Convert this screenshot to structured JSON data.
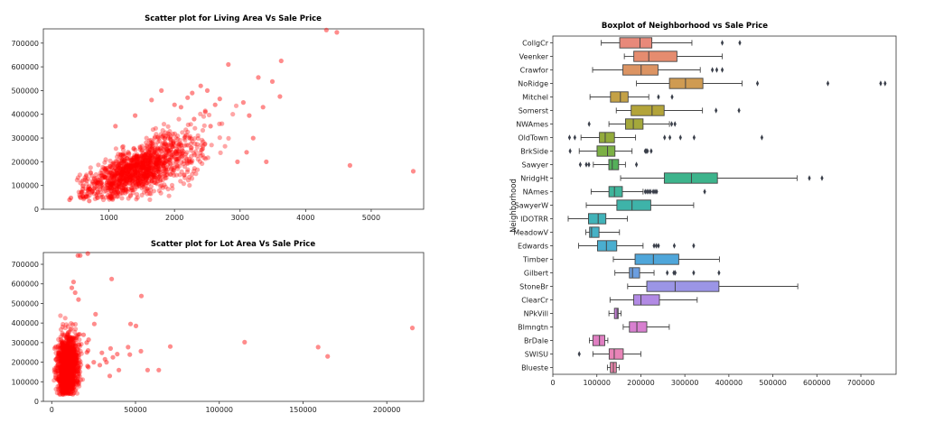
{
  "chart_data": [
    {
      "type": "scatter",
      "title": "Scatter plot for Living Area Vs Sale Price",
      "xlabel": "",
      "ylabel": "",
      "xlim": [
        0,
        5800
      ],
      "ylim": [
        0,
        760000
      ],
      "xticks": [
        1000,
        2000,
        3000,
        4000,
        5000
      ],
      "yticks": [
        0,
        100000,
        200000,
        300000,
        400000,
        500000,
        600000,
        700000
      ],
      "point_color": "#ff0000",
      "grid": false,
      "cloud": {
        "x_center": 1500,
        "x_spread": 420,
        "slope": 105,
        "intercept": 15000,
        "noise": 42000,
        "n": 1300
      },
      "points": [
        [
          4316,
          755000
        ],
        [
          4476,
          745000
        ],
        [
          4676,
          184750
        ],
        [
          5642,
          160000
        ],
        [
          3627,
          625000
        ],
        [
          2822,
          610000
        ],
        [
          3608,
          475000
        ],
        [
          3493,
          538000
        ],
        [
          3279,
          555000
        ],
        [
          2620,
          440000
        ],
        [
          3140,
          395000
        ],
        [
          2690,
          465000
        ],
        [
          3200,
          300000
        ],
        [
          3050,
          450000
        ],
        [
          2400,
          520000
        ],
        [
          2500,
          500000
        ],
        [
          2270,
          490000
        ],
        [
          1800,
          500000
        ],
        [
          3100,
          240000
        ],
        [
          2960,
          200000
        ],
        [
          3400,
          200000
        ],
        [
          2470,
          410000
        ],
        [
          2100,
          430000
        ],
        [
          2200,
          470000
        ],
        [
          400,
          40000
        ],
        [
          560,
          52000
        ],
        [
          420,
          48000
        ],
        [
          1400,
          395000
        ],
        [
          600,
          85000
        ],
        [
          700,
          35000
        ],
        [
          3350,
          430000
        ],
        [
          2550,
          350000
        ],
        [
          1100,
          350000
        ],
        [
          2000,
          440000
        ],
        [
          2300,
          380000
        ],
        [
          1650,
          460000
        ]
      ]
    },
    {
      "type": "scatter",
      "title": "Scatter plot for Lot Area Vs Sale Price",
      "xlabel": "",
      "ylabel": "",
      "xlim": [
        -5000,
        222000
      ],
      "ylim": [
        0,
        760000
      ],
      "xticks": [
        0,
        50000,
        100000,
        150000,
        200000
      ],
      "yticks": [
        0,
        100000,
        200000,
        300000,
        400000,
        500000,
        600000,
        700000
      ],
      "point_color": "#ff0000",
      "grid": false,
      "cloud": {
        "x_center": 9500,
        "x_spread": 3200,
        "y_center": 180000,
        "y_spread": 75000,
        "n": 1300
      },
      "points": [
        [
          215245,
          375000
        ],
        [
          164660,
          230000
        ],
        [
          159000,
          277000
        ],
        [
          115149,
          302000
        ],
        [
          70761,
          280000
        ],
        [
          63887,
          160000
        ],
        [
          57200,
          160000
        ],
        [
          53504,
          538000
        ],
        [
          53227,
          256000
        ],
        [
          50271,
          385000
        ],
        [
          47007,
          395000
        ],
        [
          46589,
          239000
        ],
        [
          45600,
          277000
        ],
        [
          40094,
          160000
        ],
        [
          39104,
          241500
        ],
        [
          36500,
          225000
        ],
        [
          35760,
          625000
        ],
        [
          35133,
          270000
        ],
        [
          34650,
          130000
        ],
        [
          32668,
          200000
        ],
        [
          31770,
          215000
        ],
        [
          29959,
          248000
        ],
        [
          28698,
          185000
        ],
        [
          26178,
          445000
        ],
        [
          25419,
          395000
        ],
        [
          25095,
          200000
        ],
        [
          21872,
          175000
        ],
        [
          21695,
          260000
        ],
        [
          21384,
          180000
        ],
        [
          21000,
          250000
        ],
        [
          20896,
          300000
        ],
        [
          21535,
          755000
        ],
        [
          17000,
          745000
        ],
        [
          15623,
          745000
        ],
        [
          13000,
          610000
        ],
        [
          12000,
          580000
        ],
        [
          14000,
          555000
        ],
        [
          16000,
          520000
        ],
        [
          22000,
          315000
        ],
        [
          19000,
          340000
        ]
      ]
    },
    {
      "type": "box",
      "orientation": "horizontal",
      "title": "Boxplot of Neighborhood vs Sale Price",
      "xlabel": "",
      "ylabel": "Neighborhood",
      "xlim": [
        0,
        780000
      ],
      "xticks": [
        0,
        100000,
        200000,
        300000,
        400000,
        500000,
        600000,
        700000
      ],
      "categories": [
        "CollgCr",
        "Veenker",
        "Crawfor",
        "NoRidge",
        "Mitchel",
        "Somerst",
        "NWAmes",
        "OldTown",
        "BrkSide",
        "Sawyer",
        "NridgHt",
        "NAmes",
        "SawyerW",
        "IDOTRR",
        "MeadowV",
        "Edwards",
        "Timber",
        "Gilbert",
        "StoneBr",
        "ClearCr",
        "NPkVill",
        "Blmngtn",
        "BrDale",
        "SWISU",
        "Blueste"
      ],
      "colors": [
        "#e8897a",
        "#e58c6f",
        "#dc9463",
        "#cf9b52",
        "#c4a146",
        "#b3a43a",
        "#a4a83b",
        "#93ab3b",
        "#7cb045",
        "#55b05a",
        "#3db48c",
        "#3fb59b",
        "#3eb3a9",
        "#41b3b9",
        "#45b1c6",
        "#4aaecf",
        "#4fa6da",
        "#6b9ee0",
        "#9b95e6",
        "#b28ae4",
        "#c882dc",
        "#d880d0",
        "#e07fc2",
        "#e884b7",
        "#ea86ab"
      ],
      "boxes": [
        {
          "min": 110000,
          "q1": 152000,
          "median": 198000,
          "q3": 225000,
          "max": 316000,
          "outliers": [
            385000,
            424870
          ]
        },
        {
          "min": 162500,
          "q1": 184000,
          "median": 218000,
          "q3": 282000,
          "max": 385000,
          "outliers": []
        },
        {
          "min": 90350,
          "q1": 159250,
          "median": 200624,
          "q3": 239000,
          "max": 335000,
          "outliers": [
            362500,
            372500,
            385000
          ]
        },
        {
          "min": 190000,
          "q1": 265000,
          "median": 301500,
          "q3": 341000,
          "max": 430000,
          "outliers": [
            465000,
            625000,
            745000,
            755000
          ]
        },
        {
          "min": 84500,
          "q1": 131000,
          "median": 153500,
          "q3": 171000,
          "max": 218000,
          "outliers": [
            271000,
            240000
          ]
        },
        {
          "min": 144152,
          "q1": 177975,
          "median": 225500,
          "q3": 252919,
          "max": 340000,
          "outliers": [
            370878,
            423000
          ]
        },
        {
          "min": 127500,
          "q1": 165150,
          "median": 182900,
          "q3": 205000,
          "max": 265000,
          "outliers": [
            277500,
            82500,
            270000
          ]
        },
        {
          "min": 64000,
          "q1": 105900,
          "median": 119000,
          "q3": 140000,
          "max": 188000,
          "outliers": [
            37900,
            50000,
            254000,
            265979,
            290000,
            321000,
            475000
          ]
        },
        {
          "min": 60000,
          "q1": 100500,
          "median": 124300,
          "q3": 141175,
          "max": 180000,
          "outliers": [
            39300,
            210000,
            212000,
            215000,
            223500
          ]
        },
        {
          "min": 92000,
          "q1": 127250,
          "median": 135000,
          "q3": 149462,
          "max": 165000,
          "outliers": [
            62383,
            76000,
            82000,
            190000
          ]
        },
        {
          "min": 154000,
          "q1": 253293,
          "median": 315000,
          "q3": 374000,
          "max": 555000,
          "outliers": [
            582933,
            611657
          ]
        },
        {
          "min": 87000,
          "q1": 127500,
          "median": 140000,
          "q3": 158000,
          "max": 205000,
          "outliers": [
            210000,
            214000,
            218000,
            222000,
            228000,
            232000,
            236000,
            345000
          ]
        },
        {
          "min": 76000,
          "q1": 145500,
          "median": 179900,
          "q3": 222500,
          "max": 320000,
          "outliers": []
        },
        {
          "min": 34900,
          "q1": 81000,
          "median": 103000,
          "q3": 120500,
          "max": 169500,
          "outliers": []
        },
        {
          "min": 75000,
          "q1": 83500,
          "median": 88000,
          "q3": 105000,
          "max": 151400,
          "outliers": []
        },
        {
          "min": 58500,
          "q1": 101500,
          "median": 121750,
          "q3": 145225,
          "max": 205000,
          "outliers": [
            230000,
            235000,
            240000,
            276000,
            320000
          ]
        },
        {
          "min": 137500,
          "q1": 186900,
          "median": 228475,
          "q3": 286115,
          "max": 378500,
          "outliers": []
        },
        {
          "min": 141000,
          "q1": 174000,
          "median": 181000,
          "q3": 197200,
          "max": 230000,
          "outliers": [
            260000,
            274970,
            278000,
            320000,
            377500
          ]
        },
        {
          "min": 170000,
          "q1": 213500,
          "median": 278000,
          "q3": 377426,
          "max": 556581,
          "outliers": []
        },
        {
          "min": 130000,
          "q1": 183750,
          "median": 200250,
          "q3": 242225,
          "max": 328000,
          "outliers": []
        },
        {
          "min": 127500,
          "q1": 140000,
          "median": 146000,
          "q3": 148500,
          "max": 155000,
          "outliers": []
        },
        {
          "min": 159895,
          "q1": 174000,
          "median": 191000,
          "q3": 213490,
          "max": 264561,
          "outliers": []
        },
        {
          "min": 83000,
          "q1": 91000,
          "median": 106000,
          "q3": 118000,
          "max": 125000,
          "outliers": []
        },
        {
          "min": 91000,
          "q1": 128000,
          "median": 139500,
          "q3": 160000,
          "max": 200000,
          "outliers": [
            60000
          ]
        },
        {
          "min": 124000,
          "q1": 130750,
          "median": 137500,
          "q3": 144250,
          "max": 151000,
          "outliers": []
        }
      ]
    }
  ]
}
